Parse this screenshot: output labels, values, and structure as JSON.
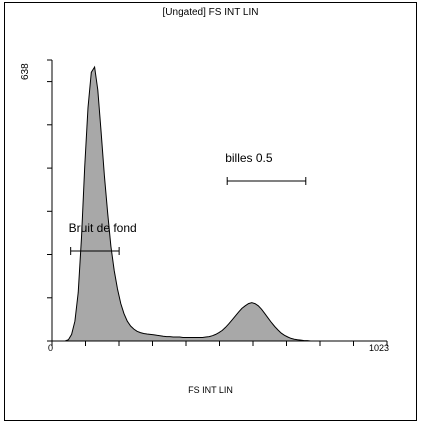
{
  "chart_data": {
    "type": "area",
    "title": "[Ungated] FS INT LIN",
    "xlabel": "FS INT LIN",
    "ylabel": "",
    "xlim": [
      0,
      1023
    ],
    "ylim": [
      0,
      638
    ],
    "x_tick_labels": [
      "0",
      "1023"
    ],
    "y_tick_labels": [
      "638"
    ],
    "fill_color": "#a8a8a8",
    "line_color": "#000000",
    "grid": false,
    "series": [
      {
        "x": [
          0,
          10,
          20,
          30,
          40,
          50,
          60,
          70,
          80,
          90,
          100,
          110,
          120,
          130,
          140,
          150,
          160,
          170,
          180,
          190,
          200,
          210,
          220,
          230,
          240,
          250,
          260,
          270,
          280,
          290,
          300,
          310,
          320,
          330,
          340,
          350,
          360,
          370,
          380,
          390,
          400,
          410,
          420,
          430,
          440,
          450,
          460,
          470,
          480,
          490,
          500,
          510,
          520,
          530,
          540,
          550,
          560,
          570,
          580,
          590,
          600,
          610,
          620,
          630,
          640,
          650,
          660,
          670,
          680,
          690,
          700,
          710,
          720,
          730,
          740,
          750,
          760,
          770,
          780,
          790,
          800,
          810,
          820,
          830,
          840,
          850,
          860,
          870,
          880,
          890,
          900,
          910,
          920,
          930,
          940,
          950,
          960,
          970,
          980,
          990,
          1000,
          1010,
          1020
        ],
        "values": [
          0,
          0,
          0,
          0,
          0,
          3,
          15,
          45,
          110,
          235,
          395,
          530,
          610,
          622,
          570,
          475,
          375,
          290,
          215,
          160,
          118,
          85,
          62,
          45,
          34,
          27,
          22,
          19,
          17,
          16,
          15,
          14,
          13,
          12,
          11,
          10,
          10,
          9,
          9,
          9,
          8,
          8,
          8,
          8,
          8,
          8,
          8,
          9,
          10,
          12,
          15,
          19,
          24,
          31,
          39,
          48,
          57,
          66,
          74,
          80,
          85,
          87,
          85,
          80,
          72,
          62,
          52,
          42,
          33,
          25,
          18,
          13,
          9,
          6,
          4,
          3,
          2,
          1,
          1,
          0,
          0,
          0,
          0,
          0,
          0,
          0,
          0,
          0,
          0,
          0,
          0,
          0,
          0,
          0,
          0,
          0,
          0,
          0,
          0,
          0,
          0,
          0,
          0
        ]
      }
    ],
    "gates": [
      {
        "label": "Bruit de fond",
        "x_start": 57,
        "x_end": 205
      },
      {
        "label": "billes 0.5",
        "x_start": 535,
        "x_end": 775
      }
    ]
  }
}
